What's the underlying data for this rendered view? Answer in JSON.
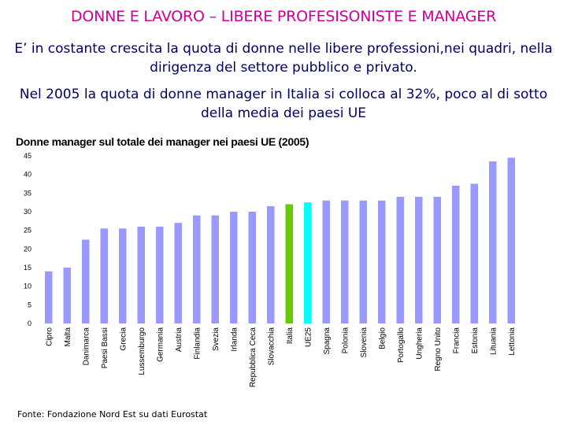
{
  "header": {
    "title": "DONNE E LAVORO – LIBERE PROFESISONISTE E MANAGER",
    "para1": "E’ in costante crescita la quota di donne nelle libere professioni,nei quadri, nella dirigenza del settore pubblico e privato.",
    "para2": "Nel 2005 la quota di donne manager in Italia si colloca al 32%, poco al di sotto della media dei paesi UE"
  },
  "footer": {
    "source": "Fonte: Fondazione Nord Est su dati Eurostat"
  },
  "chart_data": {
    "type": "bar",
    "title": "Donne manager sul totale dei manager nei paesi UE (2005)",
    "xlabel": "",
    "ylabel": "",
    "ylim": [
      0,
      45
    ],
    "yticks": [
      0,
      5,
      10,
      15,
      20,
      25,
      30,
      35,
      40,
      45
    ],
    "categories": [
      "Cipro",
      "Malta",
      "Danimarca",
      "Paesi Bassi",
      "Grecia",
      "Lussemburgo",
      "Germania",
      "Austria",
      "Finlandia",
      "Svezia",
      "Irlanda",
      "Repubblica Ceca",
      "Slovacchia",
      "Italia",
      "UE25",
      "Spagna",
      "Polonia",
      "Slovenia",
      "Belgio",
      "Portogallo",
      "Ungheria",
      "Regno Unito",
      "Francia",
      "Estonia",
      "Lituania",
      "Lettonia"
    ],
    "values": [
      14,
      15,
      22.5,
      25.5,
      25.5,
      26,
      26,
      27,
      29,
      29,
      30,
      30,
      31.5,
      32,
      32.5,
      33,
      33,
      33,
      33,
      34,
      34,
      34,
      37,
      37.5,
      43.5,
      44.5
    ],
    "colors": {
      "default": "#9999ff",
      "highlight_italia": "#66cc00",
      "highlight_ue25": "#00ffff"
    },
    "highlights": {
      "Italia": "highlight_italia",
      "UE25": "highlight_ue25"
    }
  }
}
